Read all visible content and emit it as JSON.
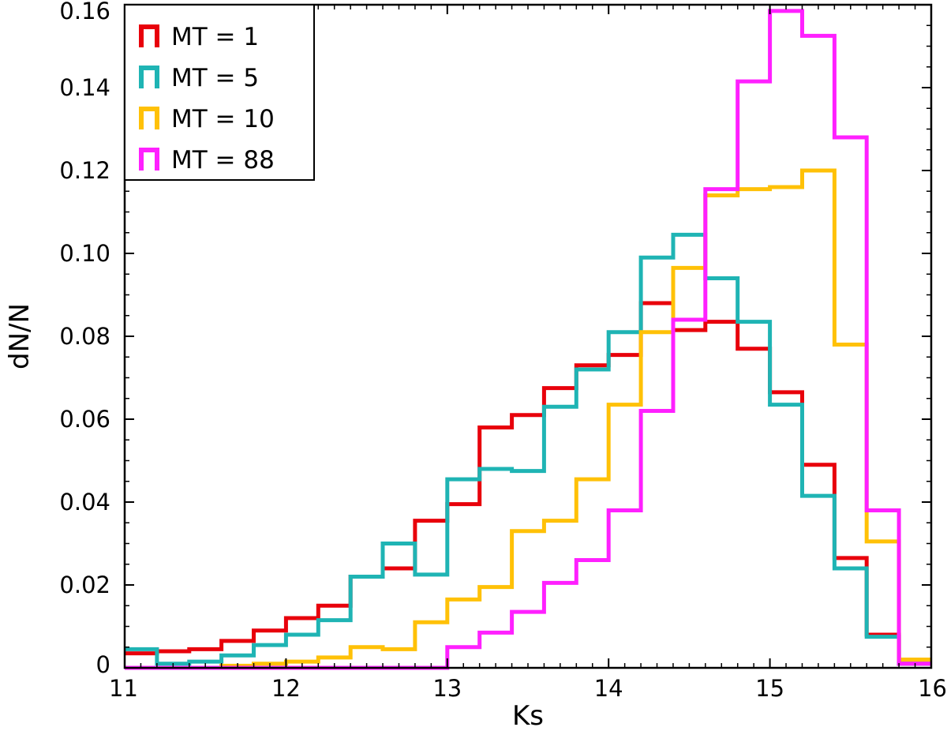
{
  "chart_data": {
    "type": "step",
    "xlabel": "Ks",
    "ylabel": "dN/N",
    "xlim": [
      11,
      16
    ],
    "ylim": [
      0,
      0.16
    ],
    "x_ticks": [
      "11",
      "12",
      "13",
      "14",
      "15",
      "16"
    ],
    "y_ticks": [
      "0",
      "0.02",
      "0.04",
      "0.06",
      "0.08",
      "0.10",
      "0.12",
      "0.14",
      "0.16"
    ],
    "legend_position": "top-left",
    "bin_edges": [
      11.0,
      11.2,
      11.4,
      11.6,
      11.8,
      12.0,
      12.2,
      12.4,
      12.6,
      12.8,
      13.0,
      13.2,
      13.4,
      13.6,
      13.8,
      14.0,
      14.2,
      14.4,
      14.6,
      14.8,
      15.0,
      15.2,
      15.4,
      15.6,
      15.8,
      16.0
    ],
    "series": [
      {
        "name": "MT = 1",
        "color": "#e8000b",
        "values": [
          0.0035,
          0.004,
          0.0045,
          0.0065,
          0.009,
          0.012,
          0.015,
          0.022,
          0.024,
          0.0355,
          0.0395,
          0.058,
          0.061,
          0.0675,
          0.073,
          0.0755,
          0.088,
          0.0815,
          0.0835,
          0.077,
          0.0665,
          0.049,
          0.0265,
          0.008,
          0.001
        ]
      },
      {
        "name": "MT = 5",
        "color": "#1fb4b4",
        "values": [
          0.0045,
          0.001,
          0.0015,
          0.003,
          0.0055,
          0.008,
          0.0115,
          0.022,
          0.03,
          0.0225,
          0.0455,
          0.048,
          0.0475,
          0.063,
          0.072,
          0.081,
          0.099,
          0.1045,
          0.094,
          0.0835,
          0.0635,
          0.0415,
          0.024,
          0.0075,
          0.001
        ]
      },
      {
        "name": "MT = 10",
        "color": "#ffc107",
        "values": [
          0,
          0,
          0,
          0.0005,
          0.001,
          0.0015,
          0.0025,
          0.005,
          0.0045,
          0.011,
          0.0165,
          0.0195,
          0.033,
          0.0355,
          0.0455,
          0.0635,
          0.081,
          0.0965,
          0.114,
          0.1155,
          0.116,
          0.12,
          0.078,
          0.0305,
          0.002
        ]
      },
      {
        "name": "MT = 88",
        "color": "#ff20ff",
        "values": [
          0,
          0,
          0,
          0,
          0,
          0,
          0,
          0,
          0,
          0,
          0.005,
          0.0085,
          0.0135,
          0.0205,
          0.026,
          0.038,
          0.062,
          0.084,
          0.1155,
          0.1415,
          0.1585,
          0.1525,
          0.128,
          0.038,
          0.001
        ]
      }
    ]
  }
}
